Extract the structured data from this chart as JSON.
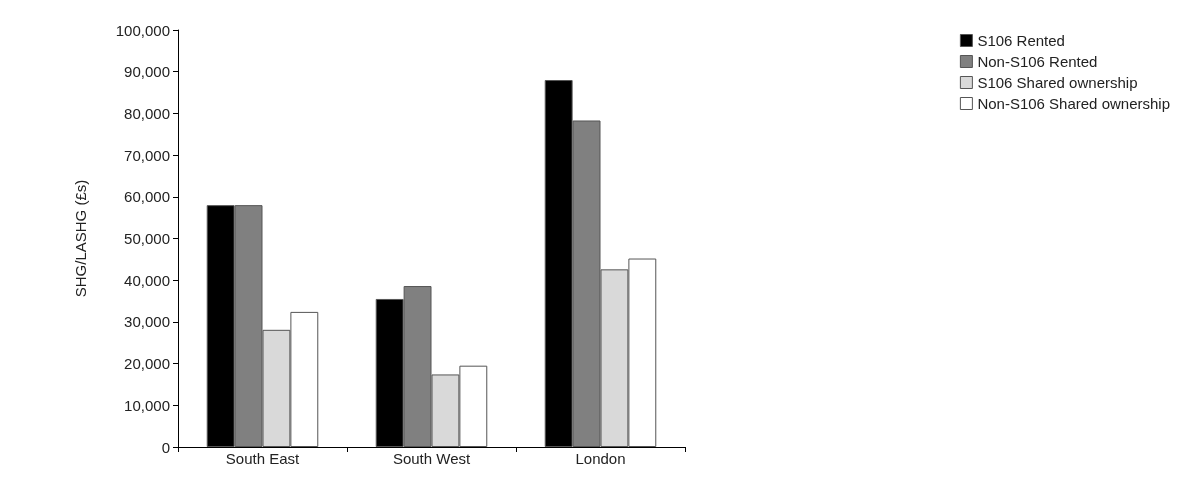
{
  "chart_data": {
    "type": "bar",
    "ylabel": "SHG/LASHG (£s)",
    "categories": [
      "South East",
      "South West",
      "London"
    ],
    "series": [
      {
        "name": "S106 Rented",
        "color": "#000000",
        "values": [
          58000,
          35500,
          88000
        ]
      },
      {
        "name": "Non-S106 Rented",
        "color": "#808080",
        "values": [
          58000,
          38600,
          78300
        ]
      },
      {
        "name": "S106 Shared ownership",
        "color": "#d9d9d9",
        "values": [
          28100,
          17400,
          42600
        ]
      },
      {
        "name": "Non-S106 Shared ownership",
        "color": "#ffffff",
        "values": [
          32400,
          19500,
          45200
        ]
      }
    ],
    "ylim": [
      0,
      100000
    ],
    "yticks": [
      0,
      {
        "value": 10000,
        "label": "10,000"
      },
      {
        "value": 20000,
        "label": "20,000"
      },
      {
        "value": 30000,
        "label": "30,000"
      },
      {
        "value": 40000,
        "label": "40,000"
      },
      {
        "value": 50000,
        "label": "50,000"
      },
      {
        "value": 60000,
        "label": "60,000"
      },
      {
        "value": 70000,
        "label": "70,000"
      },
      {
        "value": 80000,
        "label": "80,000"
      },
      {
        "value": 90000,
        "label": "90,000"
      },
      {
        "value": 100000,
        "label": "100,000"
      }
    ],
    "grid": false,
    "legend": "top right"
  }
}
